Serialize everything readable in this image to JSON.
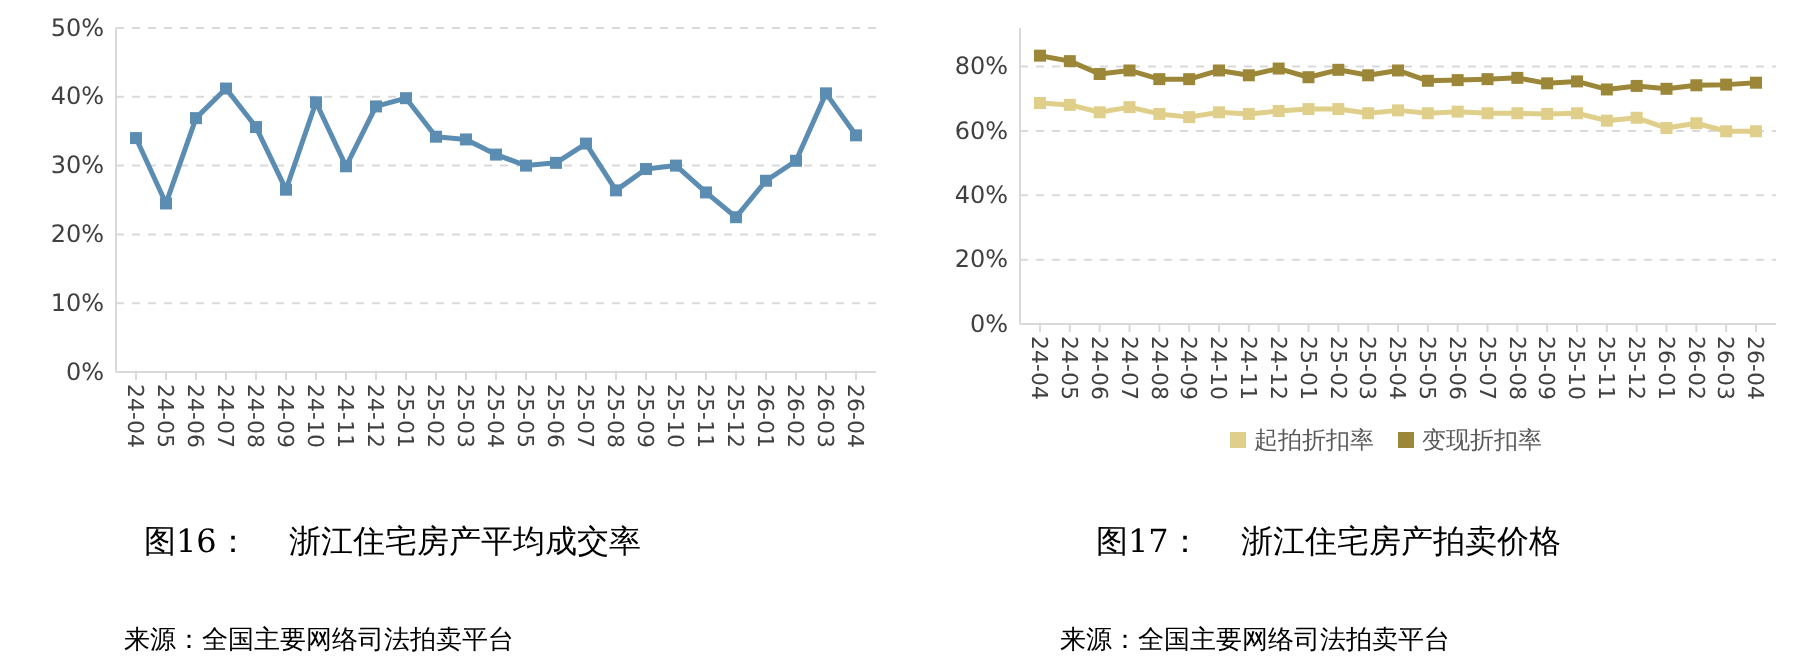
{
  "chart_data": [
    {
      "type": "line",
      "title": "图16：    浙江住宅房产平均成交率",
      "annotations": [
        "来源：全国主要网络司法拍卖平台"
      ],
      "categories": [
        "24-04",
        "24-05",
        "24-06",
        "24-07",
        "24-08",
        "24-09",
        "24-10",
        "24-11",
        "24-12",
        "25-01",
        "25-02",
        "25-03",
        "25-04",
        "25-05",
        "25-06",
        "25-07",
        "25-08",
        "25-09",
        "25-10",
        "25-11",
        "25-12",
        "26-01",
        "26-02",
        "26-03",
        "26-04"
      ],
      "series": [
        {
          "color": "#5b8db3",
          "values": [
            34.0,
            24.5,
            36.9,
            41.2,
            35.6,
            26.5,
            39.2,
            29.9,
            38.6,
            39.8,
            34.2,
            33.8,
            31.6,
            30.0,
            30.4,
            33.2,
            26.4,
            29.5,
            30.0,
            26.1,
            22.5,
            27.8,
            30.7,
            40.5,
            34.4
          ]
        }
      ],
      "ylim": [
        0,
        50
      ],
      "yticks": [
        {
          "value": 0,
          "label": "0%"
        },
        {
          "value": 10,
          "label": "10%"
        },
        {
          "value": 20,
          "label": "20%"
        },
        {
          "value": 30,
          "label": "30%"
        },
        {
          "value": 40,
          "label": "40%"
        },
        {
          "value": 50,
          "label": "50%"
        }
      ],
      "grid": "y",
      "marker": "square",
      "line_style": "solid"
    },
    {
      "type": "line",
      "title": "图17：    浙江住宅房产拍卖价格",
      "annotations": [
        "来源：全国主要网络司法拍卖平台"
      ],
      "categories": [
        "24-04",
        "24-05",
        "24-06",
        "24-07",
        "24-08",
        "24-09",
        "24-10",
        "24-11",
        "24-12",
        "25-01",
        "25-02",
        "25-03",
        "25-04",
        "25-05",
        "25-06",
        "25-07",
        "25-08",
        "25-09",
        "25-10",
        "25-11",
        "25-12",
        "26-01",
        "26-02",
        "26-03",
        "26-04"
      ],
      "series": [
        {
          "name": "起拍折扣率",
          "color": "#e0cf8a",
          "values": [
            68.7,
            68.1,
            65.8,
            67.4,
            65.3,
            64.3,
            65.8,
            65.3,
            66.2,
            66.8,
            66.8,
            65.5,
            66.4,
            65.5,
            66.0,
            65.5,
            65.5,
            65.3,
            65.5,
            63.2,
            64.1,
            60.9,
            62.4,
            59.9,
            59.9
          ]
        },
        {
          "name": "变现折扣率",
          "color": "#9c8638",
          "values": [
            83.4,
            81.7,
            77.7,
            78.8,
            76.1,
            76.1,
            78.8,
            77.3,
            79.4,
            76.7,
            79.0,
            77.3,
            78.8,
            75.6,
            75.8,
            76.1,
            76.5,
            74.8,
            75.4,
            72.9,
            74.0,
            73.1,
            74.2,
            74.4,
            75.0
          ]
        }
      ],
      "ylim": [
        0,
        92
      ],
      "yticks": [
        {
          "value": 0,
          "label": "0%"
        },
        {
          "value": 20,
          "label": "20%"
        },
        {
          "value": 40,
          "label": "40%"
        },
        {
          "value": 60,
          "label": "60%"
        },
        {
          "value": 80,
          "label": "80%"
        }
      ],
      "grid": "y",
      "legend": "bottom",
      "marker": "square",
      "line_style": "solid"
    }
  ]
}
